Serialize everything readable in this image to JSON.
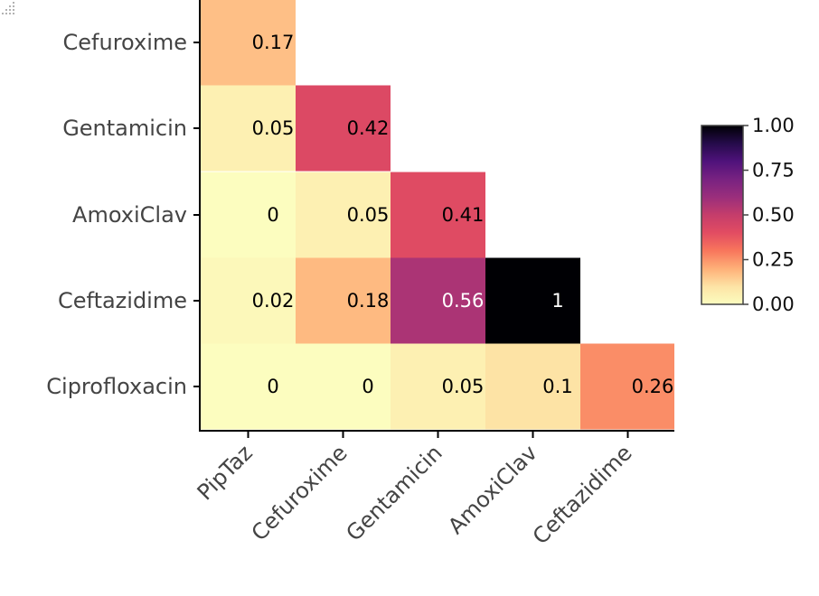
{
  "chart_data": {
    "type": "heatmap",
    "y_categories": [
      "Cefuroxime",
      "Gentamicin",
      "AmoxiClav",
      "Ceftazidime",
      "Ciprofloxacin"
    ],
    "x_categories": [
      "PipTaz",
      "Cefuroxime",
      "Gentamicin",
      "AmoxiClav",
      "Ceftazidime"
    ],
    "cells": [
      {
        "row": "Cefuroxime",
        "col": "PipTaz",
        "value": 0.17,
        "label": "0.17"
      },
      {
        "row": "Gentamicin",
        "col": "PipTaz",
        "value": 0.05,
        "label": "0.05"
      },
      {
        "row": "Gentamicin",
        "col": "Cefuroxime",
        "value": 0.42,
        "label": "0.42"
      },
      {
        "row": "AmoxiClav",
        "col": "PipTaz",
        "value": 0,
        "label": "0"
      },
      {
        "row": "AmoxiClav",
        "col": "Cefuroxime",
        "value": 0.05,
        "label": "0.05"
      },
      {
        "row": "AmoxiClav",
        "col": "Gentamicin",
        "value": 0.41,
        "label": "0.41"
      },
      {
        "row": "Ceftazidime",
        "col": "PipTaz",
        "value": 0.02,
        "label": "0.02"
      },
      {
        "row": "Ceftazidime",
        "col": "Cefuroxime",
        "value": 0.18,
        "label": "0.18"
      },
      {
        "row": "Ceftazidime",
        "col": "Gentamicin",
        "value": 0.56,
        "label": "0.56"
      },
      {
        "row": "Ceftazidime",
        "col": "AmoxiClav",
        "value": 1,
        "label": "1"
      },
      {
        "row": "Ciprofloxacin",
        "col": "PipTaz",
        "value": 0,
        "label": "0"
      },
      {
        "row": "Ciprofloxacin",
        "col": "Cefuroxime",
        "value": 0,
        "label": "0"
      },
      {
        "row": "Ciprofloxacin",
        "col": "Gentamicin",
        "value": 0.05,
        "label": "0.05"
      },
      {
        "row": "Ciprofloxacin",
        "col": "AmoxiClav",
        "value": 0.1,
        "label": "0.1"
      },
      {
        "row": "Ciprofloxacin",
        "col": "Ceftazidime",
        "value": 0.26,
        "label": "0.26"
      }
    ],
    "colorscale": {
      "name": "magma-reversed",
      "range": [
        0,
        1
      ],
      "ticks": [
        "0.00",
        "0.25",
        "0.50",
        "0.75",
        "1.00"
      ],
      "stops": [
        [
          0.0,
          "#fcfdbf"
        ],
        [
          0.1,
          "#fde3a5"
        ],
        [
          0.2,
          "#feb078"
        ],
        [
          0.3,
          "#f8765c"
        ],
        [
          0.4,
          "#e24c62"
        ],
        [
          0.5,
          "#c53d6b"
        ],
        [
          0.6,
          "#9a2e7c"
        ],
        [
          0.7,
          "#782281"
        ],
        [
          0.8,
          "#4f127b"
        ],
        [
          0.9,
          "#250b4a"
        ],
        [
          1.0,
          "#000004"
        ]
      ]
    },
    "legend": "colorbar-right"
  }
}
